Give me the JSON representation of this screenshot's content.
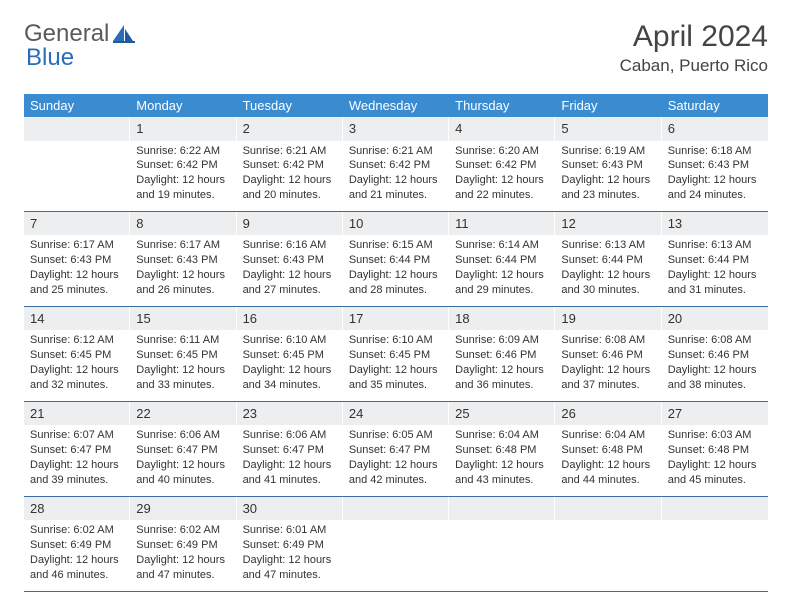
{
  "logo": {
    "general": "General",
    "blue": "Blue"
  },
  "title": "April 2024",
  "location": "Caban, Puerto Rico",
  "colors": {
    "header_bg": "#3b8bd0",
    "header_text": "#ffffff",
    "daynum_bg": "#eceeef",
    "week_border": "#3b6ea5",
    "text": "#333333",
    "logo_blue": "#2a6db8"
  },
  "weekdays": [
    "Sunday",
    "Monday",
    "Tuesday",
    "Wednesday",
    "Thursday",
    "Friday",
    "Saturday"
  ],
  "weeks": [
    [
      {
        "n": "",
        "sr": "",
        "ss": "",
        "dl": ""
      },
      {
        "n": "1",
        "sr": "Sunrise: 6:22 AM",
        "ss": "Sunset: 6:42 PM",
        "dl": "Daylight: 12 hours and 19 minutes."
      },
      {
        "n": "2",
        "sr": "Sunrise: 6:21 AM",
        "ss": "Sunset: 6:42 PM",
        "dl": "Daylight: 12 hours and 20 minutes."
      },
      {
        "n": "3",
        "sr": "Sunrise: 6:21 AM",
        "ss": "Sunset: 6:42 PM",
        "dl": "Daylight: 12 hours and 21 minutes."
      },
      {
        "n": "4",
        "sr": "Sunrise: 6:20 AM",
        "ss": "Sunset: 6:42 PM",
        "dl": "Daylight: 12 hours and 22 minutes."
      },
      {
        "n": "5",
        "sr": "Sunrise: 6:19 AM",
        "ss": "Sunset: 6:43 PM",
        "dl": "Daylight: 12 hours and 23 minutes."
      },
      {
        "n": "6",
        "sr": "Sunrise: 6:18 AM",
        "ss": "Sunset: 6:43 PM",
        "dl": "Daylight: 12 hours and 24 minutes."
      }
    ],
    [
      {
        "n": "7",
        "sr": "Sunrise: 6:17 AM",
        "ss": "Sunset: 6:43 PM",
        "dl": "Daylight: 12 hours and 25 minutes."
      },
      {
        "n": "8",
        "sr": "Sunrise: 6:17 AM",
        "ss": "Sunset: 6:43 PM",
        "dl": "Daylight: 12 hours and 26 minutes."
      },
      {
        "n": "9",
        "sr": "Sunrise: 6:16 AM",
        "ss": "Sunset: 6:43 PM",
        "dl": "Daylight: 12 hours and 27 minutes."
      },
      {
        "n": "10",
        "sr": "Sunrise: 6:15 AM",
        "ss": "Sunset: 6:44 PM",
        "dl": "Daylight: 12 hours and 28 minutes."
      },
      {
        "n": "11",
        "sr": "Sunrise: 6:14 AM",
        "ss": "Sunset: 6:44 PM",
        "dl": "Daylight: 12 hours and 29 minutes."
      },
      {
        "n": "12",
        "sr": "Sunrise: 6:13 AM",
        "ss": "Sunset: 6:44 PM",
        "dl": "Daylight: 12 hours and 30 minutes."
      },
      {
        "n": "13",
        "sr": "Sunrise: 6:13 AM",
        "ss": "Sunset: 6:44 PM",
        "dl": "Daylight: 12 hours and 31 minutes."
      }
    ],
    [
      {
        "n": "14",
        "sr": "Sunrise: 6:12 AM",
        "ss": "Sunset: 6:45 PM",
        "dl": "Daylight: 12 hours and 32 minutes."
      },
      {
        "n": "15",
        "sr": "Sunrise: 6:11 AM",
        "ss": "Sunset: 6:45 PM",
        "dl": "Daylight: 12 hours and 33 minutes."
      },
      {
        "n": "16",
        "sr": "Sunrise: 6:10 AM",
        "ss": "Sunset: 6:45 PM",
        "dl": "Daylight: 12 hours and 34 minutes."
      },
      {
        "n": "17",
        "sr": "Sunrise: 6:10 AM",
        "ss": "Sunset: 6:45 PM",
        "dl": "Daylight: 12 hours and 35 minutes."
      },
      {
        "n": "18",
        "sr": "Sunrise: 6:09 AM",
        "ss": "Sunset: 6:46 PM",
        "dl": "Daylight: 12 hours and 36 minutes."
      },
      {
        "n": "19",
        "sr": "Sunrise: 6:08 AM",
        "ss": "Sunset: 6:46 PM",
        "dl": "Daylight: 12 hours and 37 minutes."
      },
      {
        "n": "20",
        "sr": "Sunrise: 6:08 AM",
        "ss": "Sunset: 6:46 PM",
        "dl": "Daylight: 12 hours and 38 minutes."
      }
    ],
    [
      {
        "n": "21",
        "sr": "Sunrise: 6:07 AM",
        "ss": "Sunset: 6:47 PM",
        "dl": "Daylight: 12 hours and 39 minutes."
      },
      {
        "n": "22",
        "sr": "Sunrise: 6:06 AM",
        "ss": "Sunset: 6:47 PM",
        "dl": "Daylight: 12 hours and 40 minutes."
      },
      {
        "n": "23",
        "sr": "Sunrise: 6:06 AM",
        "ss": "Sunset: 6:47 PM",
        "dl": "Daylight: 12 hours and 41 minutes."
      },
      {
        "n": "24",
        "sr": "Sunrise: 6:05 AM",
        "ss": "Sunset: 6:47 PM",
        "dl": "Daylight: 12 hours and 42 minutes."
      },
      {
        "n": "25",
        "sr": "Sunrise: 6:04 AM",
        "ss": "Sunset: 6:48 PM",
        "dl": "Daylight: 12 hours and 43 minutes."
      },
      {
        "n": "26",
        "sr": "Sunrise: 6:04 AM",
        "ss": "Sunset: 6:48 PM",
        "dl": "Daylight: 12 hours and 44 minutes."
      },
      {
        "n": "27",
        "sr": "Sunrise: 6:03 AM",
        "ss": "Sunset: 6:48 PM",
        "dl": "Daylight: 12 hours and 45 minutes."
      }
    ],
    [
      {
        "n": "28",
        "sr": "Sunrise: 6:02 AM",
        "ss": "Sunset: 6:49 PM",
        "dl": "Daylight: 12 hours and 46 minutes."
      },
      {
        "n": "29",
        "sr": "Sunrise: 6:02 AM",
        "ss": "Sunset: 6:49 PM",
        "dl": "Daylight: 12 hours and 47 minutes."
      },
      {
        "n": "30",
        "sr": "Sunrise: 6:01 AM",
        "ss": "Sunset: 6:49 PM",
        "dl": "Daylight: 12 hours and 47 minutes."
      },
      {
        "n": "",
        "sr": "",
        "ss": "",
        "dl": ""
      },
      {
        "n": "",
        "sr": "",
        "ss": "",
        "dl": ""
      },
      {
        "n": "",
        "sr": "",
        "ss": "",
        "dl": ""
      },
      {
        "n": "",
        "sr": "",
        "ss": "",
        "dl": ""
      }
    ]
  ]
}
